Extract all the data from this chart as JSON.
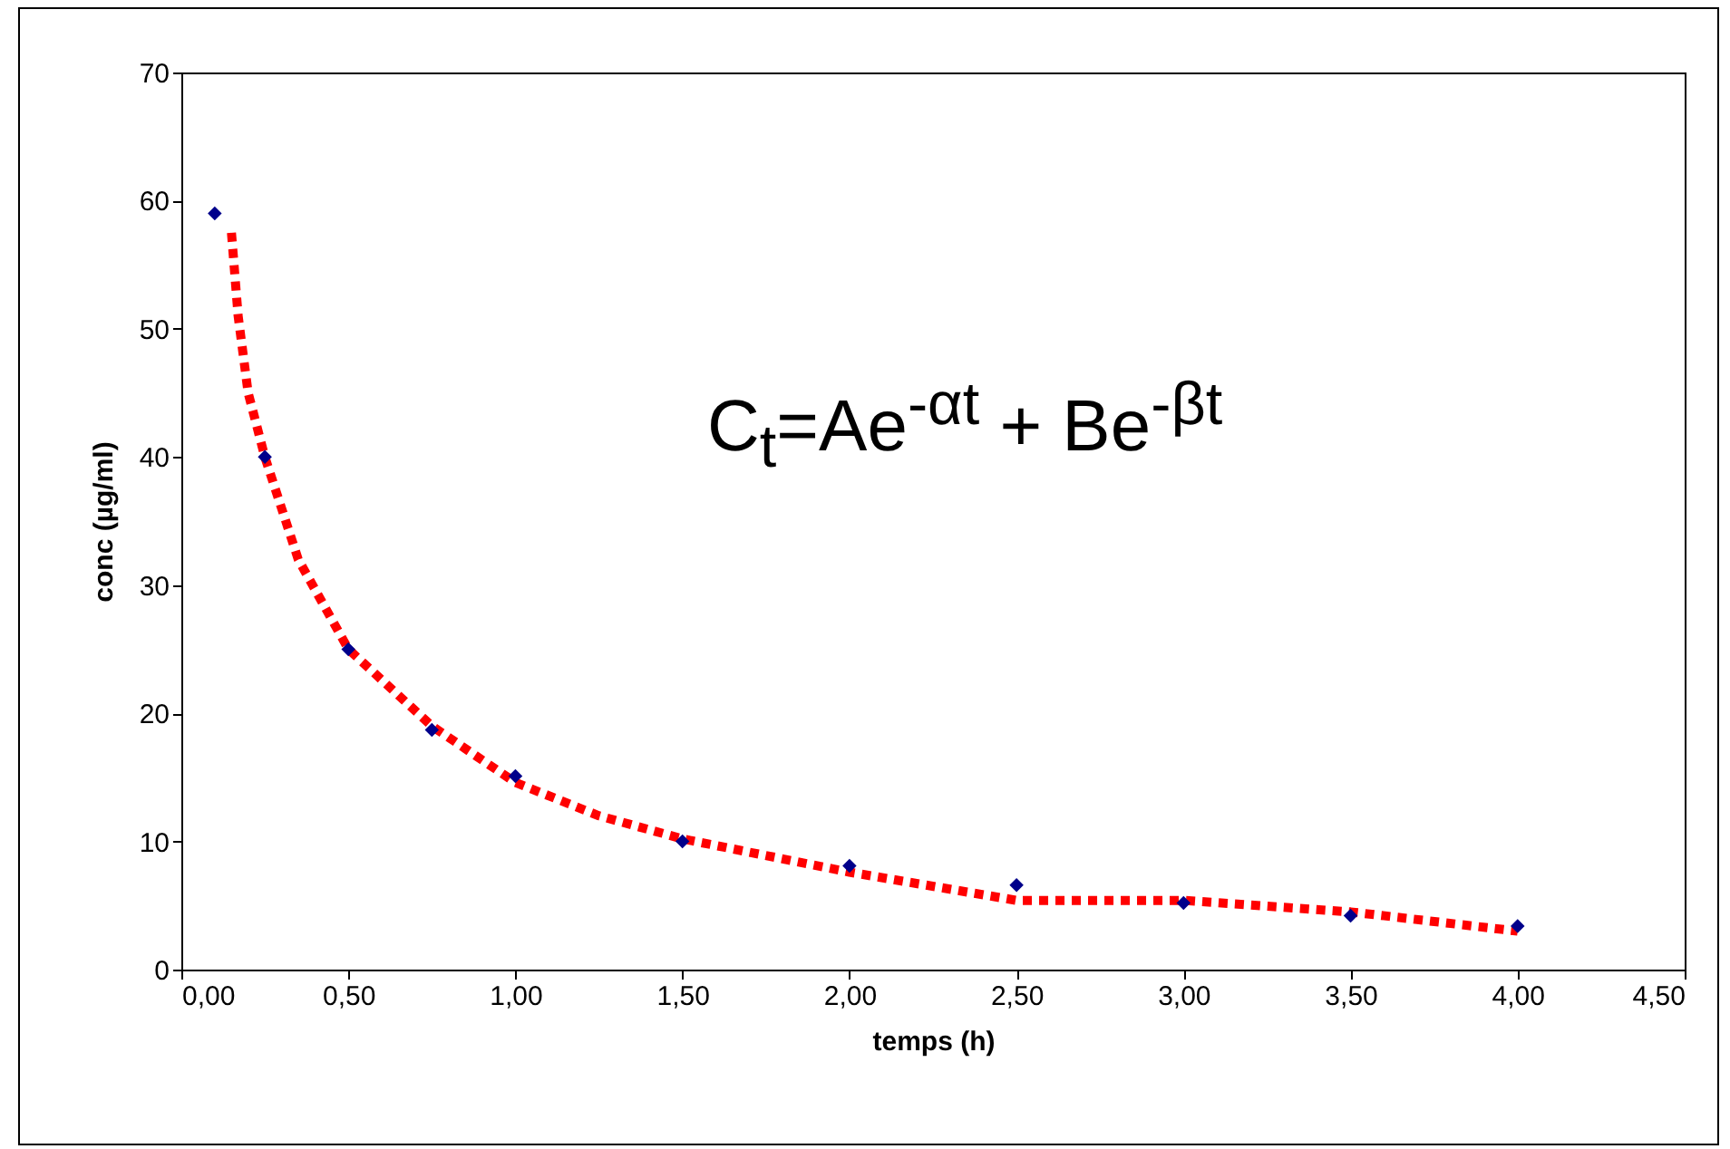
{
  "chart_data": {
    "type": "scatter",
    "xlabel": "temps (h)",
    "ylabel": "conc (µg/ml)",
    "annotations": [
      "C$_{t}$=Ae$^{-αt}$ + Be$^{-βt}$"
    ],
    "xlim": [
      0,
      4.5
    ],
    "xticks": [
      {
        "value": 0,
        "label": "0,00"
      },
      {
        "value": 0.5,
        "label": "0,50"
      },
      {
        "value": 1,
        "label": "1,00"
      },
      {
        "value": 1.5,
        "label": "1,50"
      },
      {
        "value": 2,
        "label": "2,00"
      },
      {
        "value": 2.5,
        "label": "2,50"
      },
      {
        "value": 3,
        "label": "3,00"
      },
      {
        "value": 3.5,
        "label": "3,50"
      },
      {
        "value": 4,
        "label": "4,00"
      },
      {
        "value": 4.5,
        "label": "4,50"
      }
    ],
    "ylim": [
      0,
      70
    ],
    "yticks": [
      0,
      10,
      20,
      30,
      40,
      50,
      60,
      70
    ],
    "grid": false,
    "series": [
      {
        "type": "line",
        "color": "#ff0000",
        "line_style": "dotted",
        "marker": "none",
        "x": [
          0.15,
          0.17,
          0.2,
          0.25,
          0.35,
          0.5,
          0.75,
          1,
          1.25,
          1.5,
          2,
          2.5,
          2.75,
          3,
          3.5,
          4
        ],
        "values": [
          57.5,
          51,
          45,
          40,
          32,
          25,
          19,
          14.6,
          12,
          10.2,
          7.6,
          5.4,
          5.4,
          5.4,
          4.5,
          3.0
        ]
      },
      {
        "color": "#00008b",
        "marker": "diamond",
        "x": [
          0.1,
          0.25,
          0.5,
          0.75,
          1,
          1.5,
          2,
          2.5,
          3,
          3.5,
          4
        ],
        "values": [
          59,
          40,
          25,
          18.7,
          15.1,
          10,
          8.1,
          6.6,
          5.2,
          4.2,
          3.4
        ]
      }
    ]
  }
}
